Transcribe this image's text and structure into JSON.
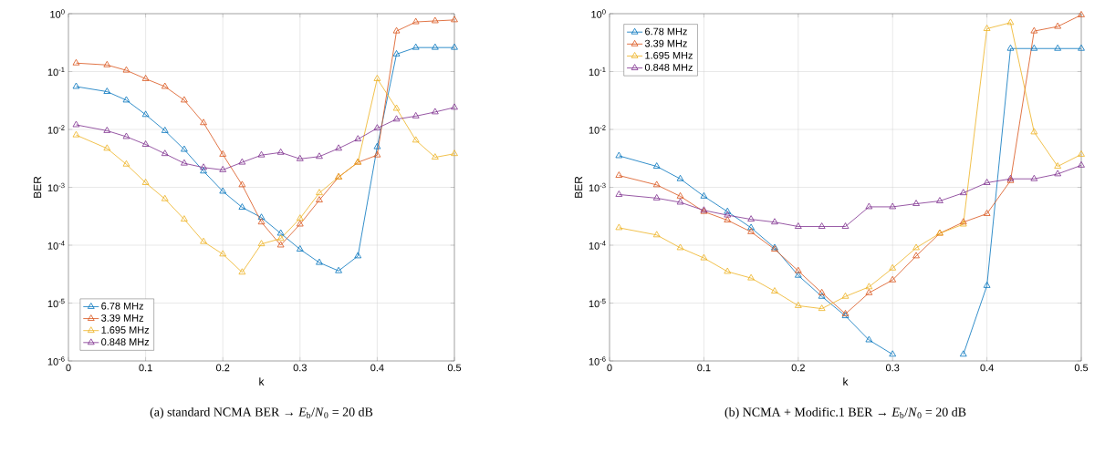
{
  "chart_data": [
    {
      "type": "line",
      "title": "(a) standard NCMA BER → *E*$_{b}$/*N*$_{0}$ = 20 dB",
      "xlabel": "k",
      "ylabel": "BER",
      "log": "y",
      "grid": true,
      "legend": "bottom left",
      "marker": "triangle",
      "line_style": "solid",
      "xlim": [
        0,
        0.5
      ],
      "ylim": [
        1e-06,
        1
      ],
      "xticks": [
        0,
        0.1,
        0.2,
        0.3,
        0.4,
        0.5
      ],
      "yticks": [
        {
          "value": 1e-06,
          "label": "10$^{-6}$"
        },
        {
          "value": 1e-05,
          "label": "10$^{-5}$"
        },
        {
          "value": 0.0001,
          "label": "10$^{-4}$"
        },
        {
          "value": 0.001,
          "label": "10$^{-3}$"
        },
        {
          "value": 0.01,
          "label": "10$^{-2}$"
        },
        {
          "value": 0.1,
          "label": "10$^{-1}$"
        },
        {
          "value": 1,
          "label": "10$^{0}$"
        }
      ],
      "x": [
        0.01,
        0.05,
        0.075,
        0.1,
        0.125,
        0.15,
        0.175,
        0.2,
        0.225,
        0.25,
        0.275,
        0.3,
        0.325,
        0.35,
        0.375,
        0.4,
        0.425,
        0.45,
        0.475,
        0.5
      ],
      "series": [
        {
          "name": "6.78 MHz",
          "color": "#0072bd",
          "values": [
            0.055,
            0.045,
            0.032,
            0.018,
            0.0095,
            0.0045,
            0.0019,
            0.00085,
            0.00045,
            0.0003,
            0.00016,
            8.5e-05,
            5e-05,
            3.6e-05,
            6.5e-05,
            0.005,
            0.2,
            0.26,
            0.26,
            0.26
          ]
        },
        {
          "name": "3.39 MHz",
          "color": "#d95319",
          "values": [
            0.14,
            0.13,
            0.105,
            0.075,
            0.055,
            0.032,
            0.013,
            0.0037,
            0.0011,
            0.00025,
            0.0001,
            0.00023,
            0.0006,
            0.0015,
            0.0027,
            0.0036,
            0.5,
            0.72,
            0.75,
            0.78
          ]
        },
        {
          "name": "1.695 MHz",
          "color": "#edb120",
          "values": [
            0.008,
            0.0047,
            0.0025,
            0.0012,
            0.00063,
            0.00028,
            0.000115,
            7e-05,
            3.4e-05,
            0.000105,
            0.00013,
            0.00029,
            0.0008,
            0.0015,
            0.0027,
            0.075,
            0.023,
            0.0065,
            0.0033,
            0.0038
          ]
        },
        {
          "name": "0.848 MHz",
          "color": "#7e2f8e",
          "values": [
            0.012,
            0.0095,
            0.0075,
            0.0055,
            0.0038,
            0.0026,
            0.0022,
            0.002,
            0.0027,
            0.0036,
            0.004,
            0.0031,
            0.0034,
            0.0047,
            0.0068,
            0.0105,
            0.015,
            0.017,
            0.02,
            0.024
          ]
        }
      ]
    },
    {
      "type": "line",
      "title": "(b) NCMA + Modific.1 BER → *E*$_{b}$/*N*$_{0}$ = 20 dB",
      "xlabel": "k",
      "ylabel": "BER",
      "log": "y",
      "grid": true,
      "legend": "top left",
      "marker": "triangle",
      "line_style": "solid",
      "xlim": [
        0,
        0.5
      ],
      "ylim": [
        1e-06,
        1
      ],
      "xticks": [
        0,
        0.1,
        0.2,
        0.3,
        0.4,
        0.5
      ],
      "yticks": [
        {
          "value": 1e-06,
          "label": "10$^{-6}$"
        },
        {
          "value": 1e-05,
          "label": "10$^{-5}$"
        },
        {
          "value": 0.0001,
          "label": "10$^{-4}$"
        },
        {
          "value": 0.001,
          "label": "10$^{-3}$"
        },
        {
          "value": 0.01,
          "label": "10$^{-2}$"
        },
        {
          "value": 0.1,
          "label": "10$^{-1}$"
        },
        {
          "value": 1,
          "label": "10$^{0}$"
        }
      ],
      "x": [
        0.01,
        0.05,
        0.075,
        0.1,
        0.125,
        0.15,
        0.175,
        0.2,
        0.225,
        0.25,
        0.275,
        0.3,
        0.325,
        0.35,
        0.375,
        0.4,
        0.425,
        0.45,
        0.475,
        0.5
      ],
      "series": [
        {
          "name": "6.78 MHz",
          "color": "#0072bd",
          "values": [
            0.0035,
            0.0023,
            0.0014,
            0.0007,
            0.00038,
            0.0002,
            9e-05,
            3e-05,
            1.3e-05,
            6e-06,
            2.3e-06,
            1.3e-06,
            null,
            null,
            1.3e-06,
            2e-05,
            0.25,
            0.25,
            0.25,
            0.25
          ]
        },
        {
          "name": "3.39 MHz",
          "color": "#d95319",
          "values": [
            0.0016,
            0.0011,
            0.0007,
            0.00038,
            0.00027,
            0.00017,
            8.5e-05,
            3.6e-05,
            1.5e-05,
            6.5e-06,
            1.5e-05,
            2.5e-05,
            6.5e-05,
            0.00016,
            0.00025,
            0.00035,
            0.0013,
            0.5,
            0.6,
            0.95
          ]
        },
        {
          "name": "1.695 MHz",
          "color": "#edb120",
          "values": [
            0.0002,
            0.00015,
            9e-05,
            6e-05,
            3.5e-05,
            2.7e-05,
            1.6e-05,
            9e-06,
            8e-06,
            1.3e-05,
            1.9e-05,
            4e-05,
            9e-05,
            0.00016,
            0.00023,
            0.55,
            0.7,
            0.009,
            0.0023,
            0.0037
          ]
        },
        {
          "name": "0.848 MHz",
          "color": "#7e2f8e",
          "values": [
            0.00075,
            0.00065,
            0.00055,
            0.0004,
            0.00033,
            0.00028,
            0.00025,
            0.00021,
            0.00021,
            0.00021,
            0.00046,
            0.00046,
            0.00052,
            0.00058,
            0.0008,
            0.0012,
            0.0014,
            0.0014,
            0.0017,
            0.0024
          ]
        }
      ]
    }
  ]
}
